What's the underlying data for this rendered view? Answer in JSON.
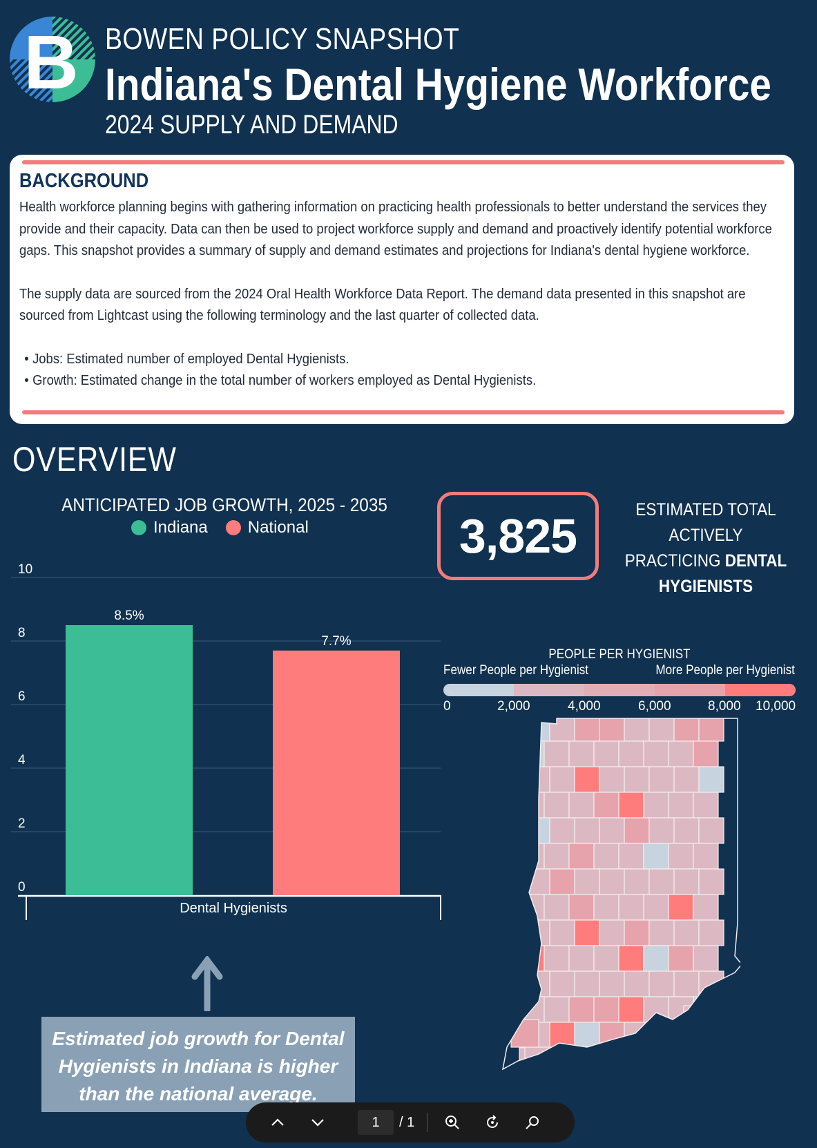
{
  "header": {
    "logo_letter": "B",
    "kicker": "BOWEN POLICY SNAPSHOT",
    "title": "Indiana's Dental Hygiene Workforce",
    "subtitle": "2024 SUPPLY AND DEMAND"
  },
  "background": {
    "heading": "BACKGROUND",
    "paragraph1": "Health workforce planning begins with gathering information on practicing health professionals to better understand the services they provide and their capacity. Data can then be used to project workforce supply and demand and proactively identify potential workforce gaps. This snapshot provides a summary of supply and demand estimates and projections for Indiana's dental hygiene workforce.",
    "paragraph2": "The supply data are sourced from the 2024 Oral Health Workforce Data Report. The demand data presented in this snapshot are sourced from Lightcast using the following terminology and the last quarter of collected data.",
    "bullets": [
      "Jobs:  Estimated number of employed Dental Hygienists.",
      "Growth: Estimated change in the total number of workers employed as Dental Hygienists."
    ]
  },
  "overview": {
    "heading": "OVERVIEW"
  },
  "stat": {
    "value": "3,825",
    "label_line1": "ESTIMATED TOTAL ACTIVELY",
    "label_line2_plain": "PRACTICING ",
    "label_line2_bold": "DENTAL",
    "label_line3_bold": "HYGIENISTS"
  },
  "chart_data": {
    "type": "bar",
    "title": "ANTICIPATED JOB GROWTH, 2025 - 2035",
    "categories": [
      "Dental Hygienists"
    ],
    "series": [
      {
        "name": "Indiana",
        "values": [
          8.5
        ],
        "label": "8.5%",
        "color": "#3dbd95"
      },
      {
        "name": "National",
        "values": [
          7.7
        ],
        "label": "7.7%",
        "color": "#fe7c7c"
      }
    ],
    "ylim": [
      0,
      10
    ],
    "yticks": [
      "0",
      "2",
      "4",
      "6",
      "8",
      "10"
    ],
    "grid": true,
    "legend": "top"
  },
  "callout": {
    "text": "Estimated job growth for Dental Hygienists in Indiana is higher than the national average."
  },
  "map": {
    "legend_title": "PEOPLE PER HYGIENIST",
    "legend_low": "Fewer People per Hygienist",
    "legend_high": "More People per Hygienist",
    "ticks": [
      "0",
      "2,000",
      "4,000",
      "6,000",
      "8,000",
      "10,000"
    ],
    "colors": {
      "low": "#c7d3de",
      "mid": "#dcb9c2",
      "midhigh": "#e6a3ab",
      "high": "#fe7c7c"
    }
  },
  "toolbar": {
    "page_current": "1",
    "page_total": "/ 1"
  }
}
